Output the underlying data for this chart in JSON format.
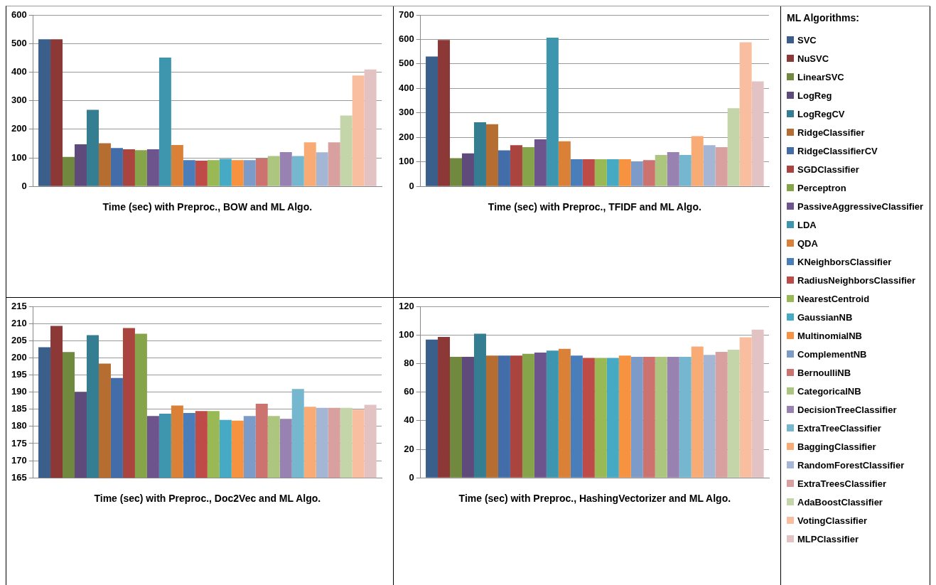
{
  "chart_data": [
    {
      "type": "bar",
      "xlabel": "Time (sec) with Preproc., BOW and ML Algo.",
      "categories": [
        null
      ],
      "ylim": [
        0,
        600
      ],
      "yticks": [
        0,
        100,
        200,
        300,
        400,
        500,
        600
      ],
      "grid": "y",
      "tick_labels": "y",
      "legend": "right",
      "legend_title": "ML Algorithms:",
      "series": [
        {
          "name": "SVC",
          "color": "#3a5f8b",
          "values": [
            515
          ]
        },
        {
          "name": "NuSVC",
          "color": "#8c3836",
          "values": [
            515
          ]
        },
        {
          "name": "LinearSVC",
          "color": "#71893f",
          "values": [
            103
          ]
        },
        {
          "name": "LogReg",
          "color": "#5e4b7c",
          "values": [
            147
          ]
        },
        {
          "name": "LogRegCV",
          "color": "#357d91",
          "values": [
            268
          ]
        },
        {
          "name": "RidgeClassifier",
          "color": "#b66d31",
          "values": [
            151
          ]
        },
        {
          "name": "RidgeClassifierCV",
          "color": "#426da9",
          "values": [
            134
          ]
        },
        {
          "name": "SGDClassifier",
          "color": "#a9443f",
          "values": [
            130
          ]
        },
        {
          "name": "Perceptron",
          "color": "#86a44a",
          "values": [
            127
          ]
        },
        {
          "name": "PassiveAggressiveClassifier",
          "color": "#6e548d",
          "values": [
            130
          ]
        },
        {
          "name": "LDA",
          "color": "#3d96ae",
          "values": [
            451
          ]
        },
        {
          "name": "QDA",
          "color": "#da8137",
          "values": [
            145
          ]
        },
        {
          "name": "KNeighborsClassifier",
          "color": "#4a7ebb",
          "values": [
            92
          ]
        },
        {
          "name": "RadiusNeighborsClassifier",
          "color": "#be4b48",
          "values": [
            90
          ]
        },
        {
          "name": "NearestCentroid",
          "color": "#98b954",
          "values": [
            92
          ]
        },
        {
          "name": "GaussianNB",
          "color": "#46aac5",
          "values": [
            96
          ]
        },
        {
          "name": "MultinomialNB",
          "color": "#f69240",
          "values": [
            92
          ]
        },
        {
          "name": "ComplementNB",
          "color": "#7c9bc9",
          "values": [
            92
          ]
        },
        {
          "name": "BernoulliNB",
          "color": "#cc7370",
          "values": [
            98
          ]
        },
        {
          "name": "CategoricalNB",
          "color": "#acc680",
          "values": [
            106
          ]
        },
        {
          "name": "DecisionTreeClassifier",
          "color": "#9882b1",
          "values": [
            120
          ]
        },
        {
          "name": "ExtraTreeClassifier",
          "color": "#74b7cf",
          "values": [
            106
          ]
        },
        {
          "name": "BaggingClassifier",
          "color": "#f9ab75",
          "values": [
            154
          ]
        },
        {
          "name": "RandomForestClassifier",
          "color": "#a5b6d5",
          "values": [
            119
          ]
        },
        {
          "name": "ExtraTreesClassifier",
          "color": "#d8a1a0",
          "values": [
            154
          ]
        },
        {
          "name": "AdaBoostClassifier",
          "color": "#c3d5a9",
          "values": [
            248
          ]
        },
        {
          "name": "VotingClassifier",
          "color": "#f9bda0",
          "values": [
            388
          ]
        },
        {
          "name": "MLPClassifier",
          "color": "#e2c2c2",
          "values": [
            409
          ]
        }
      ]
    },
    {
      "type": "bar",
      "xlabel": "Time (sec) with Preproc., TFIDF and ML Algo.",
      "categories": [
        null
      ],
      "ylim": [
        0,
        700
      ],
      "yticks": [
        0,
        100,
        200,
        300,
        400,
        500,
        600,
        700
      ],
      "grid": "y",
      "tick_labels": "y",
      "series": [
        {
          "color": "#3a5f8b",
          "values": [
            530
          ]
        },
        {
          "color": "#8c3836",
          "values": [
            598
          ]
        },
        {
          "color": "#71893f",
          "values": [
            115
          ]
        },
        {
          "color": "#5e4b7c",
          "values": [
            135
          ]
        },
        {
          "color": "#357d91",
          "values": [
            262
          ]
        },
        {
          "color": "#b66d31",
          "values": [
            254
          ]
        },
        {
          "color": "#426da9",
          "values": [
            147
          ]
        },
        {
          "color": "#a9443f",
          "values": [
            168
          ]
        },
        {
          "color": "#86a44a",
          "values": [
            160
          ]
        },
        {
          "color": "#6e548d",
          "values": [
            192
          ]
        },
        {
          "color": "#3d96ae",
          "values": [
            607
          ]
        },
        {
          "color": "#da8137",
          "values": [
            184
          ]
        },
        {
          "color": "#4a7ebb",
          "values": [
            111
          ]
        },
        {
          "color": "#be4b48",
          "values": [
            111
          ]
        },
        {
          "color": "#98b954",
          "values": [
            111
          ]
        },
        {
          "color": "#46aac5",
          "values": [
            111
          ]
        },
        {
          "color": "#f69240",
          "values": [
            111
          ]
        },
        {
          "color": "#7c9bc9",
          "values": [
            102
          ]
        },
        {
          "color": "#cc7370",
          "values": [
            107
          ]
        },
        {
          "color": "#acc680",
          "values": [
            128
          ]
        },
        {
          "color": "#9882b1",
          "values": [
            140
          ]
        },
        {
          "color": "#74b7cf",
          "values": [
            128
          ]
        },
        {
          "color": "#f9ab75",
          "values": [
            205
          ]
        },
        {
          "color": "#a5b6d5",
          "values": [
            168
          ]
        },
        {
          "color": "#d8a1a0",
          "values": [
            160
          ]
        },
        {
          "color": "#c3d5a9",
          "values": [
            319
          ]
        },
        {
          "color": "#f9bda0",
          "values": [
            588
          ]
        },
        {
          "color": "#e2c2c2",
          "values": [
            429
          ]
        }
      ]
    },
    {
      "type": "bar",
      "xlabel": "Time (sec) with Preproc., Doc2Vec and ML Algo.",
      "categories": [
        null
      ],
      "ylim": [
        165,
        215
      ],
      "yticks": [
        165,
        170,
        175,
        180,
        185,
        190,
        195,
        200,
        205,
        210,
        215
      ],
      "grid": "y",
      "tick_labels": "y",
      "series": [
        {
          "color": "#3a5f8b",
          "values": [
            203.1
          ]
        },
        {
          "color": "#8c3836",
          "values": [
            209.3
          ]
        },
        {
          "color": "#71893f",
          "values": [
            201.7
          ]
        },
        {
          "color": "#5e4b7c",
          "values": [
            190.0
          ]
        },
        {
          "color": "#357d91",
          "values": [
            206.6
          ]
        },
        {
          "color": "#b66d31",
          "values": [
            198.3
          ]
        },
        {
          "color": "#426da9",
          "values": [
            194.1
          ]
        },
        {
          "color": "#a9443f",
          "values": [
            208.7
          ]
        },
        {
          "color": "#86a44a",
          "values": [
            207.0
          ]
        },
        {
          "color": "#6e548d",
          "values": [
            183.0
          ]
        },
        {
          "color": "#3d96ae",
          "values": [
            183.7
          ]
        },
        {
          "color": "#da8137",
          "values": [
            186.1
          ]
        },
        {
          "color": "#4a7ebb",
          "values": [
            183.9
          ]
        },
        {
          "color": "#be4b48",
          "values": [
            184.5
          ]
        },
        {
          "color": "#98b954",
          "values": [
            184.5
          ]
        },
        {
          "color": "#46aac5",
          "values": [
            181.9
          ]
        },
        {
          "color": "#f69240",
          "values": [
            181.7
          ]
        },
        {
          "color": "#7c9bc9",
          "values": [
            183.0
          ]
        },
        {
          "color": "#cc7370",
          "values": [
            186.6
          ]
        },
        {
          "color": "#acc680",
          "values": [
            183.0
          ]
        },
        {
          "color": "#9882b1",
          "values": [
            182.2
          ]
        },
        {
          "color": "#74b7cf",
          "values": [
            190.9
          ]
        },
        {
          "color": "#f9ab75",
          "values": [
            185.7
          ]
        },
        {
          "color": "#a5b6d5",
          "values": [
            185.4
          ]
        },
        {
          "color": "#d8a1a0",
          "values": [
            185.4
          ]
        },
        {
          "color": "#c3d5a9",
          "values": [
            185.4
          ]
        },
        {
          "color": "#f9bda0",
          "values": [
            184.9
          ]
        },
        {
          "color": "#e2c2c2",
          "values": [
            186.3
          ]
        }
      ]
    },
    {
      "type": "bar",
      "xlabel": "Time (sec) with Preproc., HashingVectorizer and ML Algo.",
      "categories": [
        null
      ],
      "ylim": [
        0,
        120
      ],
      "yticks": [
        0,
        20,
        40,
        60,
        80,
        100,
        120
      ],
      "grid": "y",
      "tick_labels": "y",
      "series": [
        {
          "color": "#3a5f8b",
          "values": [
            96.7
          ]
        },
        {
          "color": "#8c3836",
          "values": [
            98.6
          ]
        },
        {
          "color": "#71893f",
          "values": [
            84.7
          ]
        },
        {
          "color": "#5e4b7c",
          "values": [
            84.7
          ]
        },
        {
          "color": "#357d91",
          "values": [
            100.8
          ]
        },
        {
          "color": "#b66d31",
          "values": [
            85.5
          ]
        },
        {
          "color": "#426da9",
          "values": [
            85.5
          ]
        },
        {
          "color": "#a9443f",
          "values": [
            85.5
          ]
        },
        {
          "color": "#86a44a",
          "values": [
            86.8
          ]
        },
        {
          "color": "#6e548d",
          "values": [
            87.6
          ]
        },
        {
          "color": "#3d96ae",
          "values": [
            89.0
          ]
        },
        {
          "color": "#da8137",
          "values": [
            90.3
          ]
        },
        {
          "color": "#4a7ebb",
          "values": [
            85.5
          ]
        },
        {
          "color": "#be4b48",
          "values": [
            83.9
          ]
        },
        {
          "color": "#98b954",
          "values": [
            83.9
          ]
        },
        {
          "color": "#46aac5",
          "values": [
            83.9
          ]
        },
        {
          "color": "#f69240",
          "values": [
            85.5
          ]
        },
        {
          "color": "#7c9bc9",
          "values": [
            84.7
          ]
        },
        {
          "color": "#cc7370",
          "values": [
            84.7
          ]
        },
        {
          "color": "#acc680",
          "values": [
            84.7
          ]
        },
        {
          "color": "#9882b1",
          "values": [
            84.7
          ]
        },
        {
          "color": "#74b7cf",
          "values": [
            84.7
          ]
        },
        {
          "color": "#f9ab75",
          "values": [
            91.9
          ]
        },
        {
          "color": "#a5b6d5",
          "values": [
            86.0
          ]
        },
        {
          "color": "#d8a1a0",
          "values": [
            88.2
          ]
        },
        {
          "color": "#c3d5a9",
          "values": [
            89.7
          ]
        },
        {
          "color": "#f9bda0",
          "values": [
            98.3
          ]
        },
        {
          "color": "#e2c2c2",
          "values": [
            103.7
          ]
        }
      ]
    }
  ]
}
